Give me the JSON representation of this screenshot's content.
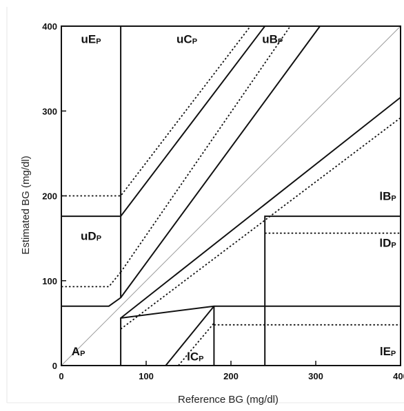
{
  "chart_data": {
    "type": "line",
    "xlabel": "Reference BG (mg/dl)",
    "ylabel": "Estimated BG (mg/dl)",
    "xlim": [
      0,
      400
    ],
    "ylim": [
      0,
      400
    ],
    "x_ticks": [
      "0",
      "100",
      "200",
      "300",
      "400"
    ],
    "y_ticks": [
      "0",
      "100",
      "200",
      "300",
      "400"
    ],
    "identity_line": {
      "points": [
        [
          0,
          0
        ],
        [
          400,
          400
        ]
      ]
    },
    "solid_boundaries": [
      {
        "points": [
          [
            70,
            0
          ],
          [
            70,
            56
          ],
          [
            180,
            70
          ],
          [
            400,
            70
          ]
        ]
      },
      {
        "points": [
          [
            70,
            56
          ],
          [
            400,
            316
          ]
        ]
      },
      {
        "points": [
          [
            0,
            70
          ],
          [
            56,
            70
          ],
          [
            70,
            80
          ],
          [
            70,
            400
          ]
        ]
      },
      {
        "points": [
          [
            70,
            80
          ],
          [
            305,
            400
          ]
        ]
      },
      {
        "points": [
          [
            0,
            176
          ],
          [
            70,
            176
          ],
          [
            70,
            176
          ],
          [
            240,
            400
          ]
        ]
      },
      {
        "points": [
          [
            240,
            0
          ],
          [
            240,
            176
          ],
          [
            400,
            176
          ]
        ]
      },
      {
        "points": [
          [
            123,
            0
          ],
          [
            180,
            70
          ]
        ]
      },
      {
        "points": [
          [
            180,
            0
          ],
          [
            180,
            70
          ]
        ]
      }
    ],
    "dashed_boundaries": [
      {
        "points": [
          [
            70,
            43
          ],
          [
            400,
            292
          ]
        ]
      },
      {
        "points": [
          [
            0,
            93
          ],
          [
            56,
            93
          ],
          [
            70,
            110
          ]
        ]
      },
      {
        "points": [
          [
            70,
            110
          ],
          [
            270,
            400
          ]
        ]
      },
      {
        "points": [
          [
            0,
            200
          ],
          [
            70,
            200
          ],
          [
            70,
            200
          ],
          [
            223,
            400
          ]
        ]
      },
      {
        "points": [
          [
            180,
            48
          ],
          [
            400,
            48
          ]
        ]
      },
      {
        "points": [
          [
            240,
            156
          ],
          [
            400,
            156
          ]
        ]
      },
      {
        "points": [
          [
            138,
            0
          ],
          [
            180,
            50
          ]
        ]
      }
    ],
    "zones": [
      {
        "main": "uE",
        "sub": "P",
        "x": 35,
        "y": 380
      },
      {
        "main": "uC",
        "sub": "P",
        "x": 148,
        "y": 380
      },
      {
        "main": "uB",
        "sub": "P",
        "x": 249,
        "y": 380
      },
      {
        "main": "uD",
        "sub": "P",
        "x": 35,
        "y": 148
      },
      {
        "main": "lB",
        "sub": "P",
        "x": 385,
        "y": 195
      },
      {
        "main": "lD",
        "sub": "P",
        "x": 385,
        "y": 140
      },
      {
        "main": "A",
        "sub": "P",
        "x": 20,
        "y": 12
      },
      {
        "main": "lC",
        "sub": "P",
        "x": 158,
        "y": 6
      },
      {
        "main": "lE",
        "sub": "P",
        "x": 385,
        "y": 12
      }
    ]
  }
}
